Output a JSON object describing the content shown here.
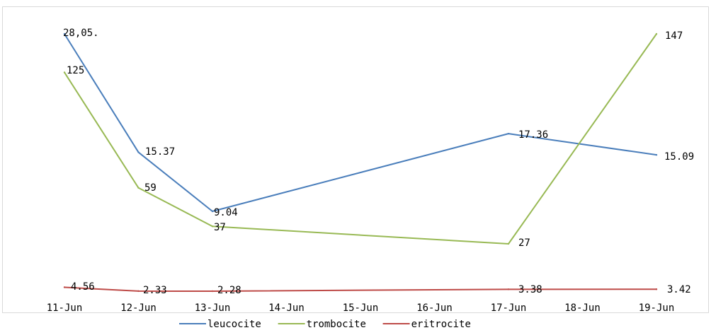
{
  "chart_data": {
    "type": "line",
    "title": "",
    "xlabel": "",
    "ylabel": "",
    "categories": [
      "11-Jun",
      "12-Jun",
      "13-Jun",
      "14-Jun",
      "15-Jun",
      "16-Jun",
      "17-Jun",
      "18-Jun",
      "19-Jun"
    ],
    "grid": false,
    "legend_position": "bottom",
    "series": [
      {
        "name": "leucocite",
        "color": "#4a7ebb",
        "points": [
          {
            "x": "11-Jun",
            "y": 28.05,
            "label": "28,05."
          },
          {
            "x": "12-Jun",
            "y": 15.37,
            "label": "15.37"
          },
          {
            "x": "13-Jun",
            "y": 9.04,
            "label": "9.04"
          },
          {
            "x": "17-Jun",
            "y": 17.36,
            "label": "17.36"
          },
          {
            "x": "19-Jun",
            "y": 15.09,
            "label": "15.09"
          }
        ]
      },
      {
        "name": "trombocite",
        "color": "#98b954",
        "points": [
          {
            "x": "11-Jun",
            "y": 125,
            "label": "125"
          },
          {
            "x": "12-Jun",
            "y": 59,
            "label": "59"
          },
          {
            "x": "13-Jun",
            "y": 37,
            "label": "37"
          },
          {
            "x": "17-Jun",
            "y": 27,
            "label": "27"
          },
          {
            "x": "19-Jun",
            "y": 147,
            "label": "147"
          }
        ]
      },
      {
        "name": "eritrocite",
        "color": "#be4b48",
        "points": [
          {
            "x": "11-Jun",
            "y": 4.56,
            "label": "4.56"
          },
          {
            "x": "12-Jun",
            "y": 2.33,
            "label": "2.33"
          },
          {
            "x": "13-Jun",
            "y": 2.28,
            "label": "2.28"
          },
          {
            "x": "17-Jun",
            "y": 3.38,
            "label": "3.38"
          },
          {
            "x": "19-Jun",
            "y": 3.42,
            "label": "3.42"
          }
        ]
      }
    ]
  }
}
